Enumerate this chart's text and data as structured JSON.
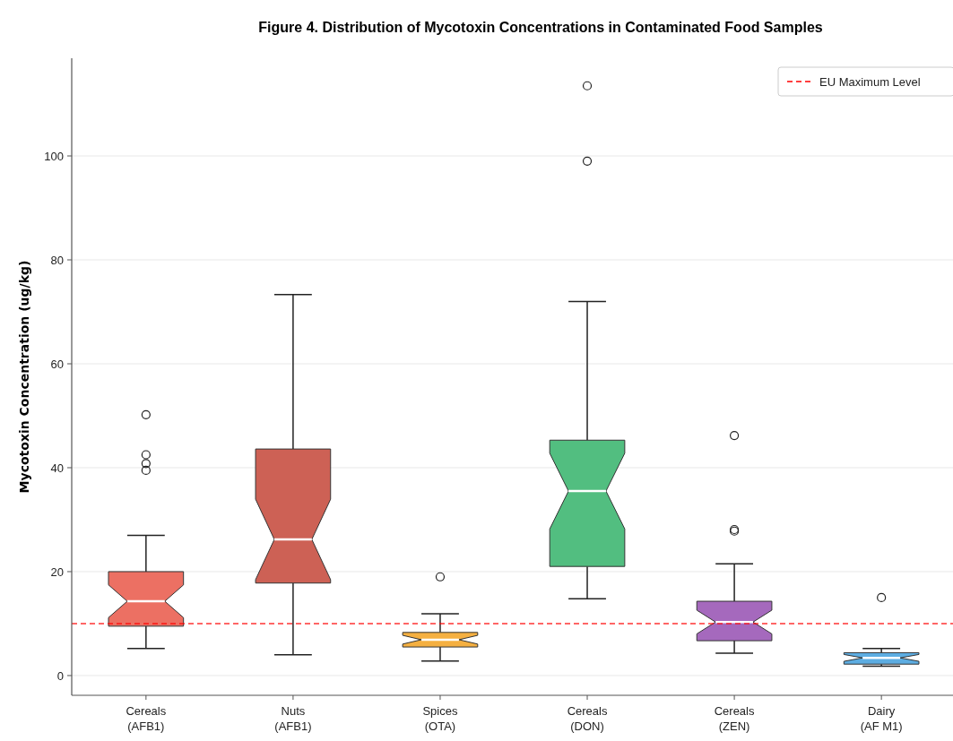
{
  "chart_data": {
    "type": "box",
    "title": "Figure 4. Distribution of Mycotoxin Concentrations in Contaminated Food Samples",
    "ylabel": "Mycotoxin Concentration (ug/kg)",
    "categories": [
      "Cereals\n(AFB1)",
      "Nuts\n(AFB1)",
      "Spices\n(OTA)",
      "Cereals\n(DON)",
      "Cereals\n(ZEN)",
      "Dairy\n(AF M1)"
    ],
    "colors": [
      "#ec7063",
      "#cd6155",
      "#f5b041",
      "#52be80",
      "#a569bd",
      "#5dade2"
    ],
    "boxes": [
      {
        "low": 5.2,
        "q1": 9.5,
        "median": 14.3,
        "q3": 20,
        "high": 27,
        "outliers": [
          39.5,
          40.8,
          42.5,
          50.2
        ]
      },
      {
        "low": 4.0,
        "q1": 17.8,
        "median": 26.2,
        "q3": 43.6,
        "high": 73.3
      },
      {
        "low": 2.8,
        "q1": 5.5,
        "median": 6.9,
        "q3": 8.3,
        "high": 11.9,
        "outliers": [
          19
        ]
      },
      {
        "low": 14.8,
        "q1": 21,
        "median": 35.5,
        "q3": 45.3,
        "high": 72,
        "outliers": [
          99,
          113.5
        ]
      },
      {
        "low": 4.3,
        "q1": 6.7,
        "median": 10.3,
        "q3": 14.3,
        "high": 21.5,
        "outliers": [
          27.8,
          28.1,
          46.2
        ]
      },
      {
        "low": 1.8,
        "q1": 2.2,
        "median": 3.4,
        "q3": 4.4,
        "high": 5.2,
        "outliers": [
          15
        ]
      }
    ],
    "ylim": [
      -3.8,
      118.8
    ],
    "yticks": [
      0,
      20,
      40,
      60,
      80,
      100
    ],
    "grid": "y",
    "legend": "top right",
    "ref_lines": [
      {
        "axis": "y",
        "value": 10,
        "label": "EU Maximum Level",
        "color": "#ff0000",
        "line_style": "dashed"
      }
    ]
  }
}
